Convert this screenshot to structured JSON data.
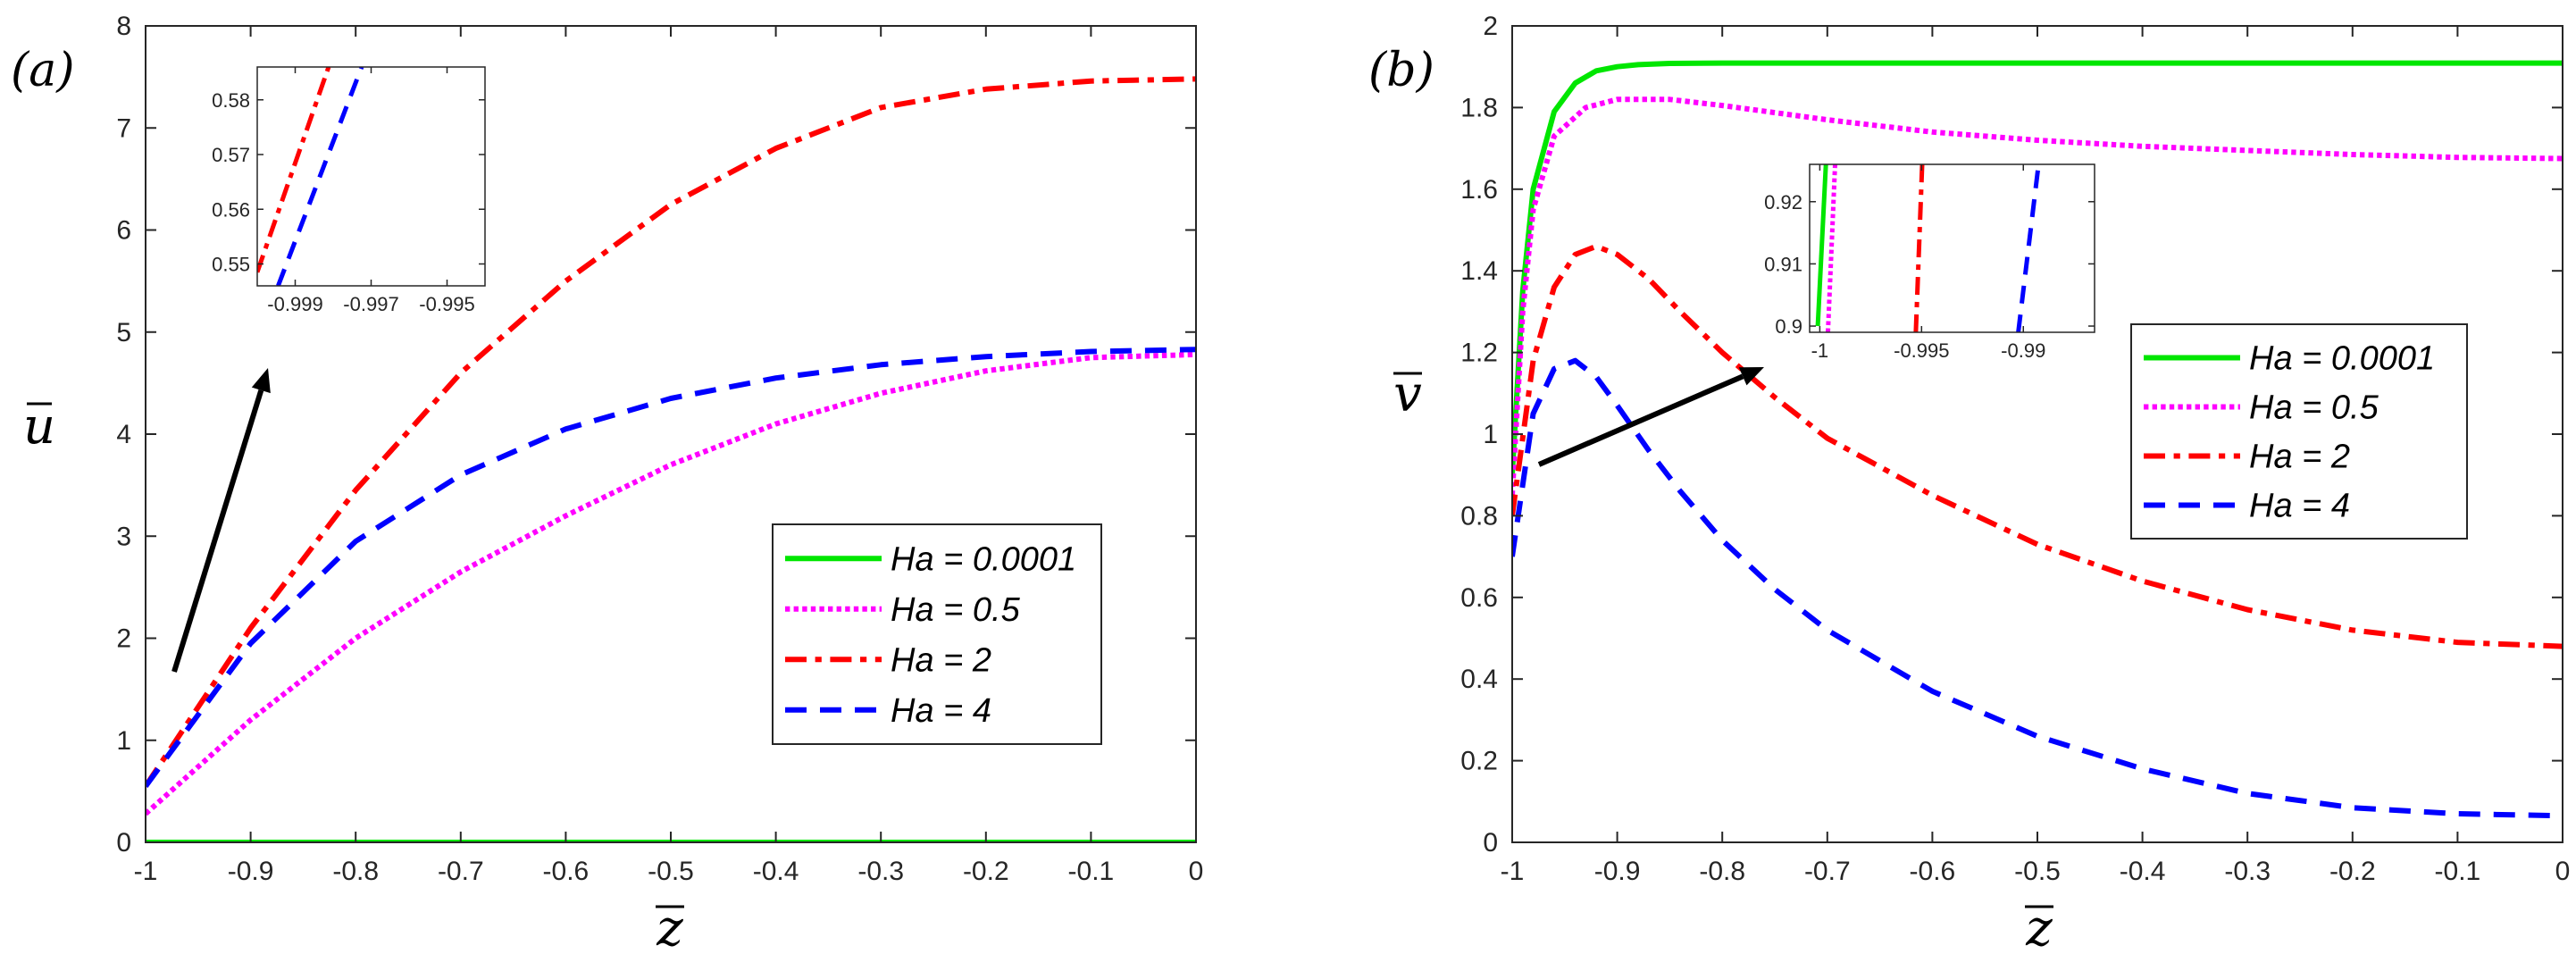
{
  "chart_data": [
    {
      "type": "line",
      "panel_label": "(a)",
      "xlabel": "z",
      "ylabel": "u",
      "xlim": [
        -1,
        0
      ],
      "ylim": [
        0,
        8
      ],
      "xticks": [
        -1,
        -0.9,
        -0.8,
        -0.7,
        -0.6,
        -0.5,
        -0.4,
        -0.3,
        -0.2,
        -0.1,
        0
      ],
      "yticks": [
        0,
        1,
        2,
        3,
        4,
        5,
        6,
        7,
        8
      ],
      "xtick_labels": [
        "-1",
        "-0.9",
        "-0.8",
        "-0.7",
        "-0.6",
        "-0.5",
        "-0.4",
        "-0.3",
        "-0.2",
        "-0.1",
        "0"
      ],
      "ytick_labels": [
        "0",
        "1",
        "2",
        "3",
        "4",
        "5",
        "6",
        "7",
        "8"
      ],
      "legend_position": "center-right",
      "annotation": "arrow indicating increasing Ha",
      "series": [
        {
          "name": "Ha = 0.0001",
          "color": "#00e600",
          "style": "solid",
          "x": [
            -1,
            0
          ],
          "y": [
            0,
            0
          ]
        },
        {
          "name": "Ha = 0.5",
          "color": "#ff00ff",
          "style": "dotted",
          "x": [
            -1,
            -0.9,
            -0.8,
            -0.7,
            -0.6,
            -0.5,
            -0.4,
            -0.3,
            -0.2,
            -0.1,
            0
          ],
          "y": [
            0.28,
            1.2,
            2.0,
            2.65,
            3.2,
            3.7,
            4.1,
            4.4,
            4.62,
            4.75,
            4.78
          ]
        },
        {
          "name": "Ha = 2",
          "color": "#ff0000",
          "style": "dashdot",
          "x": [
            -1,
            -0.9,
            -0.8,
            -0.7,
            -0.6,
            -0.5,
            -0.4,
            -0.3,
            -0.2,
            -0.1,
            0
          ],
          "y": [
            0.55,
            2.1,
            3.45,
            4.6,
            5.5,
            6.25,
            6.8,
            7.2,
            7.38,
            7.46,
            7.48
          ]
        },
        {
          "name": "Ha = 4",
          "color": "#0000ff",
          "style": "dashed",
          "x": [
            -1,
            -0.9,
            -0.8,
            -0.7,
            -0.6,
            -0.5,
            -0.4,
            -0.3,
            -0.2,
            -0.1,
            0
          ],
          "y": [
            0.55,
            1.95,
            2.95,
            3.6,
            4.05,
            4.35,
            4.55,
            4.68,
            4.76,
            4.81,
            4.83
          ]
        }
      ],
      "inset": {
        "xlim": [
          -1,
          -0.994
        ],
        "ylim": [
          0.546,
          0.586
        ],
        "xticks": [
          -0.999,
          -0.997,
          -0.995
        ],
        "yticks": [
          0.55,
          0.56,
          0.57,
          0.58
        ],
        "xtick_labels": [
          "-0.999",
          "-0.997",
          "-0.995"
        ],
        "ytick_labels": [
          "0.55",
          "0.56",
          "0.57",
          "0.58"
        ],
        "series": [
          {
            "name": "Ha = 2",
            "color": "#ff0000",
            "style": "dashdot",
            "x": [
              -1,
              -0.99812
            ],
            "y": [
              0.5485,
              0.586
            ]
          },
          {
            "name": "Ha = 4",
            "color": "#0000ff",
            "style": "dashed",
            "x": [
              -0.99945,
              -0.99725
            ],
            "y": [
              0.546,
              0.586
            ]
          }
        ]
      }
    },
    {
      "type": "line",
      "panel_label": "(b)",
      "xlabel": "z",
      "ylabel": "v",
      "xlim": [
        -1,
        0
      ],
      "ylim": [
        0,
        2
      ],
      "xticks": [
        -1,
        -0.9,
        -0.8,
        -0.7,
        -0.6,
        -0.5,
        -0.4,
        -0.3,
        -0.2,
        -0.1,
        0
      ],
      "yticks": [
        0,
        0.2,
        0.4,
        0.6,
        0.8,
        1,
        1.2,
        1.4,
        1.6,
        1.8,
        2
      ],
      "xtick_labels": [
        "-1",
        "-0.9",
        "-0.8",
        "-0.7",
        "-0.6",
        "-0.5",
        "-0.4",
        "-0.3",
        "-0.2",
        "-0.1",
        "0"
      ],
      "ytick_labels": [
        "0",
        "0.2",
        "0.4",
        "0.6",
        "0.8",
        "1",
        "1.2",
        "1.4",
        "1.6",
        "1.8",
        "2"
      ],
      "legend_position": "center-right",
      "annotation": "arrow indicating increasing Ha",
      "series": [
        {
          "name": "Ha = 0.0001",
          "color": "#00e600",
          "style": "solid",
          "x": [
            -1,
            -0.99,
            -0.98,
            -0.96,
            -0.94,
            -0.92,
            -0.9,
            -0.88,
            -0.85,
            -0.8,
            -0.7,
            -0.5,
            -0.3,
            0
          ],
          "y": [
            0.9,
            1.35,
            1.6,
            1.79,
            1.86,
            1.89,
            1.9,
            1.905,
            1.908,
            1.909,
            1.909,
            1.909,
            1.909,
            1.909
          ]
        },
        {
          "name": "Ha = 0.5",
          "color": "#ff00ff",
          "style": "dotted",
          "x": [
            -1,
            -0.99,
            -0.98,
            -0.96,
            -0.93,
            -0.9,
            -0.85,
            -0.8,
            -0.7,
            -0.6,
            -0.5,
            -0.4,
            -0.3,
            -0.2,
            -0.1,
            0
          ],
          "y": [
            0.85,
            1.3,
            1.55,
            1.73,
            1.8,
            1.82,
            1.82,
            1.805,
            1.77,
            1.74,
            1.72,
            1.705,
            1.695,
            1.685,
            1.678,
            1.675
          ]
        },
        {
          "name": "Ha = 2",
          "color": "#ff0000",
          "style": "dashdot",
          "x": [
            -1,
            -0.98,
            -0.96,
            -0.94,
            -0.92,
            -0.9,
            -0.87,
            -0.84,
            -0.8,
            -0.75,
            -0.7,
            -0.6,
            -0.5,
            -0.4,
            -0.3,
            -0.2,
            -0.1,
            0
          ],
          "y": [
            0.8,
            1.18,
            1.36,
            1.44,
            1.46,
            1.44,
            1.38,
            1.3,
            1.2,
            1.09,
            0.99,
            0.85,
            0.73,
            0.64,
            0.57,
            0.52,
            0.49,
            0.48
          ]
        },
        {
          "name": "Ha = 4",
          "color": "#0000ff",
          "style": "dashed",
          "x": [
            -1,
            -0.98,
            -0.96,
            -0.94,
            -0.92,
            -0.9,
            -0.87,
            -0.84,
            -0.8,
            -0.75,
            -0.7,
            -0.6,
            -0.5,
            -0.4,
            -0.3,
            -0.2,
            -0.1,
            0
          ],
          "y": [
            0.7,
            1.05,
            1.16,
            1.18,
            1.14,
            1.07,
            0.96,
            0.86,
            0.74,
            0.62,
            0.52,
            0.37,
            0.26,
            0.18,
            0.12,
            0.085,
            0.07,
            0.065
          ]
        }
      ],
      "inset": {
        "xlim": [
          -1.0005,
          -0.9865
        ],
        "ylim": [
          0.899,
          0.926
        ],
        "xticks": [
          -1,
          -0.995,
          -0.99
        ],
        "yticks": [
          0.9,
          0.91,
          0.92
        ],
        "xtick_labels": [
          "-1",
          "-0.995",
          "-0.99"
        ],
        "ytick_labels": [
          "0.9",
          "0.91",
          "0.92"
        ],
        "series": [
          {
            "name": "Ha = 0.0001",
            "color": "#00e600",
            "style": "solid",
            "x": [
              -1.0001,
              -0.9997
            ],
            "y": [
              0.9,
              0.926
            ]
          },
          {
            "name": "Ha = 0.5",
            "color": "#ff00ff",
            "style": "dotted",
            "x": [
              -0.9996,
              -0.99925
            ],
            "y": [
              0.899,
              0.926
            ]
          },
          {
            "name": "Ha = 2",
            "color": "#ff0000",
            "style": "dashdot",
            "x": [
              -0.99528,
              -0.99497
            ],
            "y": [
              0.899,
              0.926
            ]
          },
          {
            "name": "Ha = 4",
            "color": "#0000ff",
            "style": "dashed",
            "x": [
              -0.99025,
              -0.98925
            ],
            "y": [
              0.899,
              0.926
            ]
          }
        ]
      }
    }
  ]
}
